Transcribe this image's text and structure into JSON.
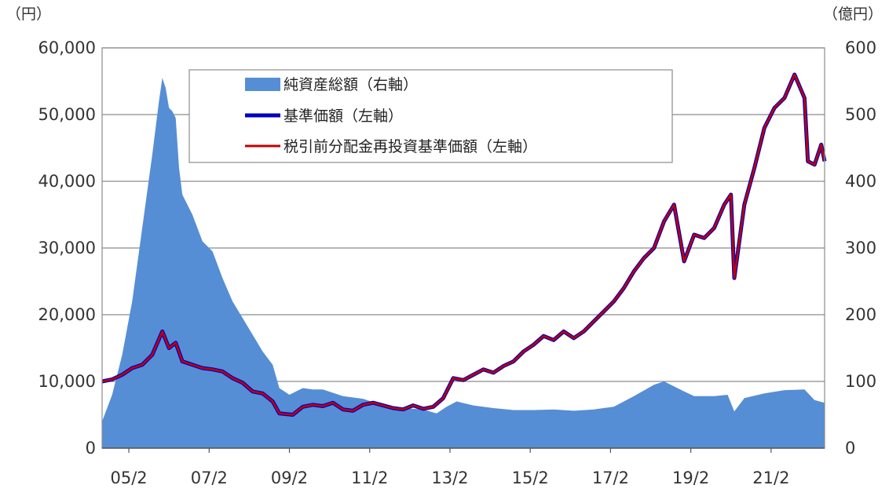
{
  "chart_data": {
    "type": "area+line",
    "left_axis_unit": "（円）",
    "right_axis_unit": "（億円）",
    "left_ylim": [
      0,
      60000
    ],
    "right_ylim": [
      0,
      600
    ],
    "left_ticks": [
      0,
      10000,
      20000,
      30000,
      40000,
      50000,
      60000
    ],
    "left_tick_labels": [
      "0",
      "10,000",
      "20,000",
      "30,000",
      "40,000",
      "50,000",
      "60,000"
    ],
    "right_ticks": [
      0,
      100,
      200,
      300,
      400,
      500,
      600
    ],
    "right_tick_labels": [
      "0",
      "100",
      "200",
      "300",
      "400",
      "500",
      "600"
    ],
    "x_range": [
      "2004-06",
      "2022-06"
    ],
    "x_tick_labels": [
      {
        "date": "2005-02",
        "label": "05/2"
      },
      {
        "date": "2007-02",
        "label": "07/2"
      },
      {
        "date": "2009-02",
        "label": "09/2"
      },
      {
        "date": "2011-02",
        "label": "11/2"
      },
      {
        "date": "2013-02",
        "label": "13/2"
      },
      {
        "date": "2015-02",
        "label": "15/2"
      },
      {
        "date": "2017-02",
        "label": "17/2"
      },
      {
        "date": "2019-02",
        "label": "19/2"
      },
      {
        "date": "2021-02",
        "label": "21/2"
      }
    ],
    "grid": true,
    "legend_position": "top-center",
    "legend": [
      {
        "label": "純資産総額（右軸）",
        "kind": "area",
        "color": "#558ED5"
      },
      {
        "label": "基準価額（左軸）",
        "kind": "line",
        "color": "#0000C0"
      },
      {
        "label": "税引前分配金再投資基準価額（左軸）",
        "kind": "line",
        "color": "#C00000"
      }
    ],
    "series": [
      {
        "name": "純資産総額（右軸）",
        "axis": "right",
        "points": [
          [
            "2004-06",
            40
          ],
          [
            "2004-09",
            80
          ],
          [
            "2004-12",
            140
          ],
          [
            "2005-03",
            220
          ],
          [
            "2005-06",
            330
          ],
          [
            "2005-09",
            440
          ],
          [
            "2005-11",
            520
          ],
          [
            "2005-12",
            555
          ],
          [
            "2006-01",
            540
          ],
          [
            "2006-02",
            510
          ],
          [
            "2006-03",
            505
          ],
          [
            "2006-04",
            495
          ],
          [
            "2006-05",
            420
          ],
          [
            "2006-06",
            380
          ],
          [
            "2006-09",
            350
          ],
          [
            "2006-12",
            310
          ],
          [
            "2007-03",
            295
          ],
          [
            "2007-06",
            255
          ],
          [
            "2007-09",
            220
          ],
          [
            "2007-12",
            195
          ],
          [
            "2008-03",
            170
          ],
          [
            "2008-06",
            145
          ],
          [
            "2008-09",
            125
          ],
          [
            "2008-11",
            90
          ],
          [
            "2009-02",
            80
          ],
          [
            "2009-06",
            90
          ],
          [
            "2009-09",
            88
          ],
          [
            "2009-12",
            88
          ],
          [
            "2010-06",
            78
          ],
          [
            "2010-12",
            74
          ],
          [
            "2011-06",
            64
          ],
          [
            "2011-12",
            60
          ],
          [
            "2012-06",
            58
          ],
          [
            "2012-10",
            52
          ],
          [
            "2013-01",
            62
          ],
          [
            "2013-04",
            70
          ],
          [
            "2013-09",
            64
          ],
          [
            "2014-03",
            60
          ],
          [
            "2014-09",
            57
          ],
          [
            "2015-03",
            57
          ],
          [
            "2015-09",
            58
          ],
          [
            "2016-03",
            56
          ],
          [
            "2016-09",
            58
          ],
          [
            "2017-03",
            62
          ],
          [
            "2017-09",
            78
          ],
          [
            "2018-03",
            95
          ],
          [
            "2018-06",
            100
          ],
          [
            "2018-12",
            85
          ],
          [
            "2019-03",
            78
          ],
          [
            "2019-09",
            78
          ],
          [
            "2020-01",
            80
          ],
          [
            "2020-03",
            55
          ],
          [
            "2020-06",
            75
          ],
          [
            "2020-12",
            82
          ],
          [
            "2021-06",
            87
          ],
          [
            "2021-12",
            88
          ],
          [
            "2022-03",
            72
          ],
          [
            "2022-06",
            68
          ]
        ]
      },
      {
        "name": "基準価額（左軸）",
        "axis": "left",
        "points": [
          [
            "2004-06",
            10000
          ],
          [
            "2004-09",
            10300
          ],
          [
            "2004-12",
            11000
          ],
          [
            "2005-03",
            12000
          ],
          [
            "2005-06",
            12500
          ],
          [
            "2005-09",
            14000
          ],
          [
            "2005-12",
            17500
          ],
          [
            "2006-02",
            15000
          ],
          [
            "2006-04",
            15800
          ],
          [
            "2006-06",
            13000
          ],
          [
            "2006-09",
            12500
          ],
          [
            "2006-12",
            12000
          ],
          [
            "2007-03",
            11800
          ],
          [
            "2007-06",
            11500
          ],
          [
            "2007-09",
            10500
          ],
          [
            "2007-12",
            9800
          ],
          [
            "2008-03",
            8500
          ],
          [
            "2008-06",
            8200
          ],
          [
            "2008-09",
            7000
          ],
          [
            "2008-11",
            5200
          ],
          [
            "2009-03",
            5000
          ],
          [
            "2009-06",
            6200
          ],
          [
            "2009-09",
            6500
          ],
          [
            "2009-12",
            6300
          ],
          [
            "2010-03",
            6800
          ],
          [
            "2010-06",
            5800
          ],
          [
            "2010-09",
            5600
          ],
          [
            "2010-12",
            6500
          ],
          [
            "2011-03",
            6800
          ],
          [
            "2011-06",
            6400
          ],
          [
            "2011-09",
            6000
          ],
          [
            "2011-12",
            5800
          ],
          [
            "2012-03",
            6400
          ],
          [
            "2012-06",
            5900
          ],
          [
            "2012-09",
            6200
          ],
          [
            "2012-12",
            7500
          ],
          [
            "2013-03",
            10500
          ],
          [
            "2013-06",
            10200
          ],
          [
            "2013-09",
            11000
          ],
          [
            "2013-12",
            11800
          ],
          [
            "2014-03",
            11300
          ],
          [
            "2014-06",
            12300
          ],
          [
            "2014-09",
            13000
          ],
          [
            "2014-12",
            14500
          ],
          [
            "2015-03",
            15500
          ],
          [
            "2015-06",
            16800
          ],
          [
            "2015-09",
            16200
          ],
          [
            "2015-12",
            17500
          ],
          [
            "2016-03",
            16500
          ],
          [
            "2016-06",
            17500
          ],
          [
            "2016-09",
            19000
          ],
          [
            "2016-12",
            20500
          ],
          [
            "2017-03",
            22000
          ],
          [
            "2017-06",
            24000
          ],
          [
            "2017-09",
            26500
          ],
          [
            "2017-12",
            28500
          ],
          [
            "2018-03",
            30000
          ],
          [
            "2018-06",
            34000
          ],
          [
            "2018-09",
            36500
          ],
          [
            "2018-12",
            28000
          ],
          [
            "2019-03",
            32000
          ],
          [
            "2019-06",
            31500
          ],
          [
            "2019-09",
            33000
          ],
          [
            "2019-12",
            36500
          ],
          [
            "2020-02",
            38000
          ],
          [
            "2020-03",
            25500
          ],
          [
            "2020-06",
            36500
          ],
          [
            "2020-09",
            42000
          ],
          [
            "2020-12",
            48000
          ],
          [
            "2021-03",
            51000
          ],
          [
            "2021-06",
            52500
          ],
          [
            "2021-09",
            56000
          ],
          [
            "2021-12",
            52500
          ],
          [
            "2022-01",
            43000
          ],
          [
            "2022-03",
            42500
          ],
          [
            "2022-05",
            45500
          ],
          [
            "2022-06",
            43000
          ]
        ]
      },
      {
        "name": "税引前分配金再投資基準価額（左軸）",
        "axis": "left",
        "points": [
          [
            "2004-06",
            10000
          ],
          [
            "2004-09",
            10300
          ],
          [
            "2004-12",
            11000
          ],
          [
            "2005-03",
            12000
          ],
          [
            "2005-06",
            12500
          ],
          [
            "2005-09",
            14000
          ],
          [
            "2005-12",
            17500
          ],
          [
            "2006-02",
            15000
          ],
          [
            "2006-04",
            15800
          ],
          [
            "2006-06",
            13000
          ],
          [
            "2006-09",
            12500
          ],
          [
            "2006-12",
            12000
          ],
          [
            "2007-03",
            11800
          ],
          [
            "2007-06",
            11500
          ],
          [
            "2007-09",
            10500
          ],
          [
            "2007-12",
            9800
          ],
          [
            "2008-03",
            8500
          ],
          [
            "2008-06",
            8200
          ],
          [
            "2008-09",
            7000
          ],
          [
            "2008-11",
            5200
          ],
          [
            "2009-03",
            5000
          ],
          [
            "2009-06",
            6200
          ],
          [
            "2009-09",
            6500
          ],
          [
            "2009-12",
            6300
          ],
          [
            "2010-03",
            6800
          ],
          [
            "2010-06",
            5800
          ],
          [
            "2010-09",
            5600
          ],
          [
            "2010-12",
            6500
          ],
          [
            "2011-03",
            6800
          ],
          [
            "2011-06",
            6400
          ],
          [
            "2011-09",
            6000
          ],
          [
            "2011-12",
            5800
          ],
          [
            "2012-03",
            6400
          ],
          [
            "2012-06",
            5900
          ],
          [
            "2012-09",
            6200
          ],
          [
            "2012-12",
            7500
          ],
          [
            "2013-03",
            10500
          ],
          [
            "2013-06",
            10200
          ],
          [
            "2013-09",
            11000
          ],
          [
            "2013-12",
            11800
          ],
          [
            "2014-03",
            11300
          ],
          [
            "2014-06",
            12300
          ],
          [
            "2014-09",
            13000
          ],
          [
            "2014-12",
            14500
          ],
          [
            "2015-03",
            15500
          ],
          [
            "2015-06",
            16800
          ],
          [
            "2015-09",
            16200
          ],
          [
            "2015-12",
            17500
          ],
          [
            "2016-03",
            16500
          ],
          [
            "2016-06",
            17500
          ],
          [
            "2016-09",
            19000
          ],
          [
            "2016-12",
            20500
          ],
          [
            "2017-03",
            22000
          ],
          [
            "2017-06",
            24000
          ],
          [
            "2017-09",
            26500
          ],
          [
            "2017-12",
            28500
          ],
          [
            "2018-03",
            30000
          ],
          [
            "2018-06",
            34000
          ],
          [
            "2018-09",
            36500
          ],
          [
            "2018-12",
            28000
          ],
          [
            "2019-03",
            32000
          ],
          [
            "2019-06",
            31500
          ],
          [
            "2019-09",
            33000
          ],
          [
            "2019-12",
            36500
          ],
          [
            "2020-02",
            38000
          ],
          [
            "2020-03",
            25500
          ],
          [
            "2020-06",
            36500
          ],
          [
            "2020-09",
            42000
          ],
          [
            "2020-12",
            48000
          ],
          [
            "2021-03",
            51000
          ],
          [
            "2021-06",
            52500
          ],
          [
            "2021-09",
            56000
          ],
          [
            "2021-12",
            52500
          ],
          [
            "2022-01",
            43000
          ],
          [
            "2022-03",
            42500
          ],
          [
            "2022-05",
            45500
          ],
          [
            "2022-06",
            43000
          ]
        ]
      }
    ]
  }
}
